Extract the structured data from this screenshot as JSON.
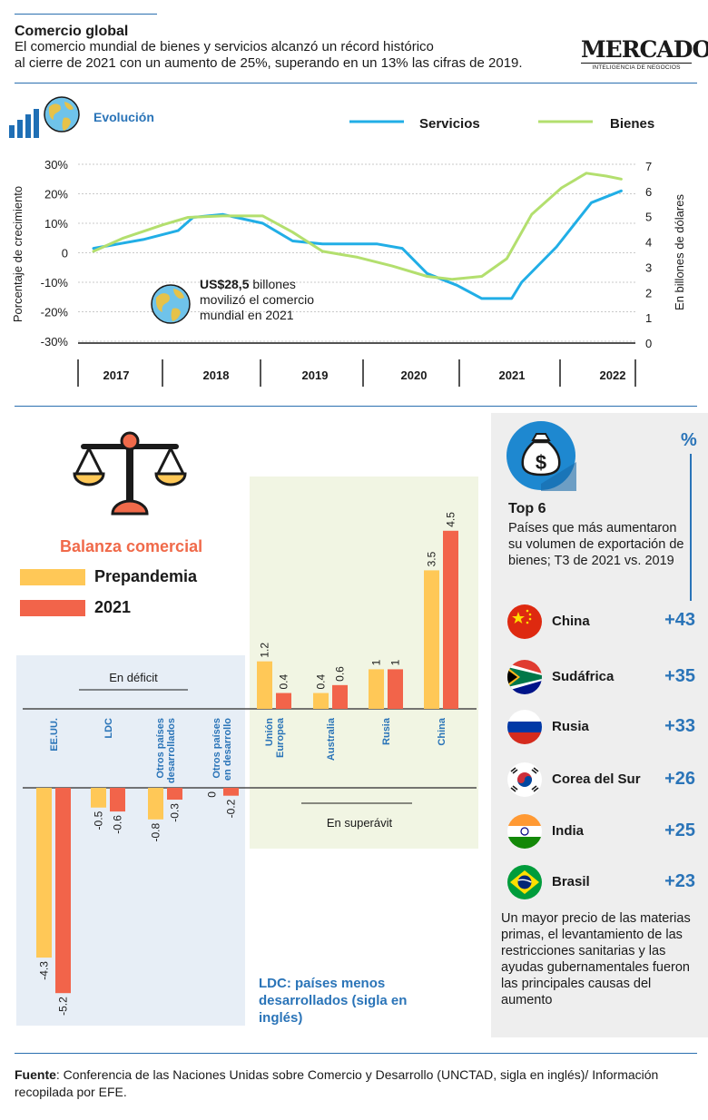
{
  "header": {
    "title": "Comercio global",
    "subtitle_line1": "El comercio mundial de bienes y servicios alcanzó un récord histórico",
    "subtitle_line2": "al cierre de 2021 con un aumento de 25%, superando en un 13% las cifras de 2019.",
    "logo_main": "MERCADO",
    "logo_tag": "INTELIGENCIA DE NEGOCIOS"
  },
  "colors": {
    "servicios": "#21aee6",
    "bienes": "#b3df6e",
    "prepandemia": "#ffc857",
    "y2021": "#f2644a",
    "accent": "#2a74b8"
  },
  "chart_data": [
    {
      "type": "line",
      "section": "Evolución",
      "ylabel": "Porcentaje de crecimiento",
      "y2label": "En billones de dólares",
      "y_ticks": [
        "30%",
        "20%",
        "10%",
        "0",
        "-10%",
        "-20%",
        "-30%"
      ],
      "y2_ticks": [
        "7",
        "6",
        "5",
        "4",
        "3",
        "2",
        "1",
        "0"
      ],
      "x_ticks": [
        "2017",
        "2018",
        "2019",
        "2020",
        "2021",
        "2022"
      ],
      "ylim": [
        -30,
        30
      ],
      "series": [
        {
          "name": "Servicios",
          "x": [
            2017.0,
            2017.5,
            2017.85,
            2018.0,
            2018.3,
            2018.7,
            2019.0,
            2019.3,
            2019.6,
            2019.85,
            2020.1,
            2020.35,
            2020.65,
            2020.9,
            2021.2,
            2021.3,
            2021.65,
            2022.0,
            2022.3
          ],
          "y": [
            1.5,
            4.5,
            7.5,
            12,
            13,
            10,
            4,
            3,
            3,
            3,
            1.5,
            -7,
            -11,
            -15.5,
            -15.5,
            -10,
            2,
            17,
            21
          ]
        },
        {
          "name": "Bienes",
          "x": [
            2017.0,
            2017.3,
            2017.7,
            2017.95,
            2018.3,
            2018.7,
            2019.0,
            2019.3,
            2019.65,
            2020.0,
            2020.35,
            2020.6,
            2020.9,
            2021.15,
            2021.4,
            2021.7,
            2021.95,
            2022.15,
            2022.3
          ],
          "y": [
            0.5,
            5,
            9.5,
            12,
            12.5,
            12.5,
            7,
            0.5,
            -1.5,
            -4.5,
            -8,
            -9,
            -8,
            -2,
            13,
            22,
            27,
            26,
            25
          ]
        }
      ],
      "annotation": {
        "bold": "US$28,5",
        "text": " billones movilizó el comercio mundial en 2021"
      }
    },
    {
      "type": "bar",
      "title": "Balanza comercial",
      "legend": [
        "Prepandemia",
        "2021"
      ],
      "deficit_label": "En déficit",
      "surplus_label": "En superávit",
      "categories": [
        "EE.UU.",
        "LDC",
        "Otros países desarrollados",
        "Otros países en desarrollo",
        "Unión Europea",
        "Australia",
        "Rusia",
        "China"
      ],
      "series": [
        {
          "name": "Prepandemia",
          "values": [
            -4.3,
            -0.5,
            -0.8,
            0,
            1.2,
            0.4,
            1,
            3.5
          ]
        },
        {
          "name": "2021",
          "values": [
            -5.2,
            -0.6,
            -0.3,
            -0.2,
            0.4,
            0.6,
            1,
            4.5
          ]
        }
      ],
      "value_labels": {
        "prepandemia": [
          "-4.3",
          "-0.5",
          "-0.8",
          "0",
          "1.2",
          "0.4",
          "1",
          "3.5"
        ],
        "y2021": [
          "-5.2",
          "-0.6",
          "-0.3",
          "-0.2",
          "0.4",
          "0.6",
          "1",
          "4.5"
        ]
      },
      "ldc_note": "LDC: países menos desarrollados (sigla en inglés)"
    }
  ],
  "cat_lines": {
    "eeuu": [
      "EE.UU."
    ],
    "ldc": [
      "LDC"
    ],
    "otros_des": [
      "Otros países",
      "desarrollados"
    ],
    "otros_dev": [
      "Otros países",
      "en desarrollo"
    ],
    "ue": [
      "Unión",
      "Europea"
    ],
    "australia": [
      "Australia"
    ],
    "rusia": [
      "Rusia"
    ],
    "china": [
      "China"
    ]
  },
  "top6": {
    "percent_sign": "%",
    "title": "Top 6",
    "subtitle": "Países que más aumentaron su volumen de exportación de bienes; T3 de 2021 vs. 2019",
    "countries": [
      {
        "name": "China",
        "value": "+43",
        "flag": "china-flag"
      },
      {
        "name": "Sudáfrica",
        "value": "+35",
        "flag": "south-africa-flag"
      },
      {
        "name": "Rusia",
        "value": "+33",
        "flag": "russia-flag"
      },
      {
        "name": "Corea del Sur",
        "value": "+26",
        "flag": "korea-flag"
      },
      {
        "name": "India",
        "value": "+25",
        "flag": "india-flag"
      },
      {
        "name": "Brasil",
        "value": "+23",
        "flag": "brazil-flag"
      }
    ],
    "note": "Un mayor precio de las materias primas, el levantamiento de las restricciones sanitarias y las ayudas gubernamentales fueron las principales causas del aumento"
  },
  "source": {
    "label": "Fuente",
    "text": ": Conferencia de las Naciones Unidas sobre Comercio y Desarrollo (UNCTAD, sigla en inglés)/ Información recopilada por EFE."
  }
}
